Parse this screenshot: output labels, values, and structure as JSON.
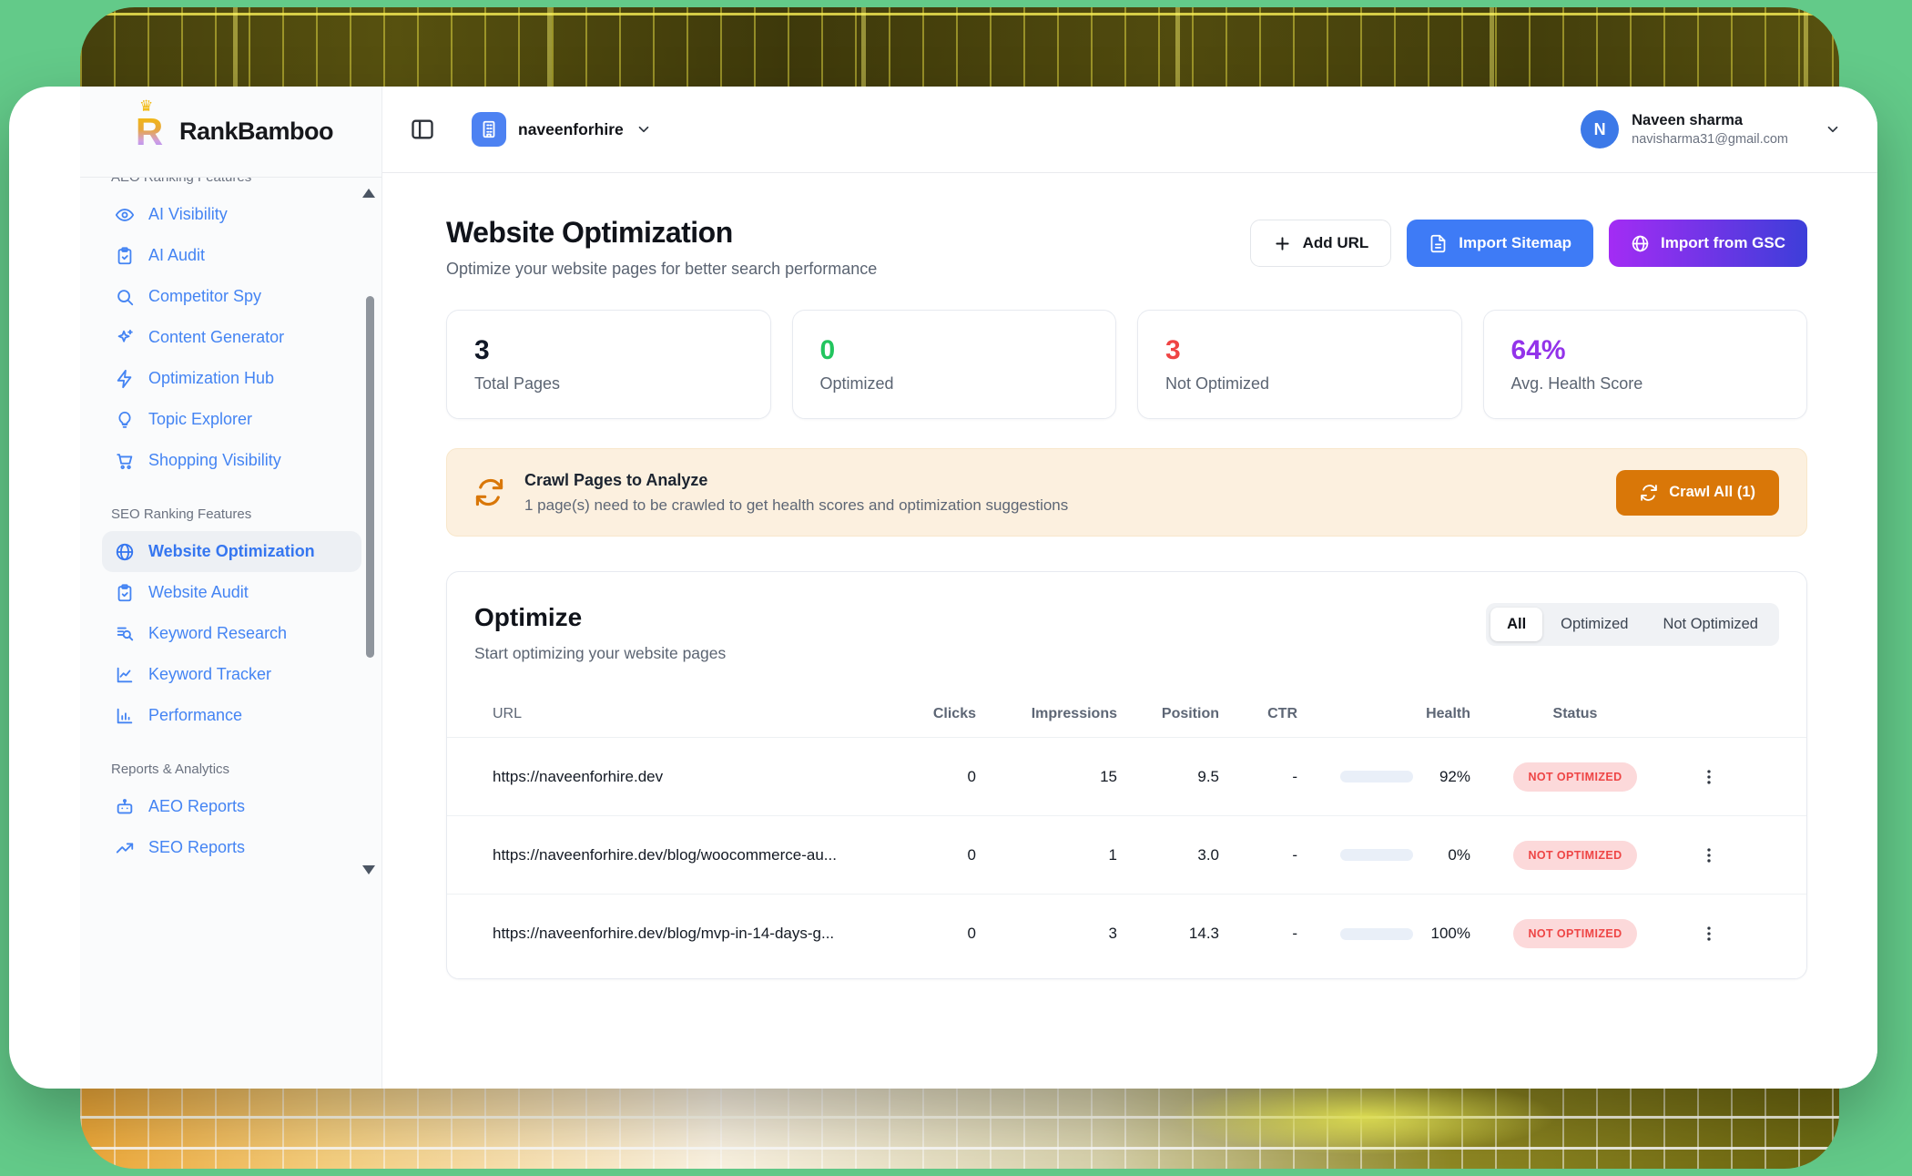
{
  "brand": {
    "name": "RankBamboo"
  },
  "workspace": {
    "name": "naveenforhire"
  },
  "user": {
    "initial": "N",
    "name": "Naveen sharma",
    "email": "navisharma31@gmail.com"
  },
  "sidebar": {
    "sections": [
      {
        "label": "AEO Ranking Features",
        "clipped": true,
        "items": [
          {
            "label": "AI Visibility",
            "icon": "eye"
          },
          {
            "label": "AI Audit",
            "icon": "clipboard-check"
          },
          {
            "label": "Competitor Spy",
            "icon": "search"
          },
          {
            "label": "Content Generator",
            "icon": "sparkles"
          },
          {
            "label": "Optimization Hub",
            "icon": "zap"
          },
          {
            "label": "Topic Explorer",
            "icon": "lightbulb"
          },
          {
            "label": "Shopping Visibility",
            "icon": "shopping-cart"
          }
        ]
      },
      {
        "label": "SEO Ranking Features",
        "items": [
          {
            "label": "Website Optimization",
            "icon": "globe",
            "active": true
          },
          {
            "label": "Website Audit",
            "icon": "clipboard-check"
          },
          {
            "label": "Keyword Research",
            "icon": "list-search"
          },
          {
            "label": "Keyword Tracker",
            "icon": "chart-line"
          },
          {
            "label": "Performance",
            "icon": "bar-chart"
          }
        ]
      },
      {
        "label": "Reports & Analytics",
        "items": [
          {
            "label": "AEO Reports",
            "icon": "robot"
          },
          {
            "label": "SEO Reports",
            "icon": "trending-up"
          }
        ]
      }
    ]
  },
  "page": {
    "title": "Website Optimization",
    "subtitle": "Optimize your website pages for better search performance",
    "actions": {
      "add_url": "Add URL",
      "import_sitemap": "Import Sitemap",
      "import_gsc": "Import from GSC"
    }
  },
  "stats": [
    {
      "value": "3",
      "label": "Total Pages",
      "color": "#111827"
    },
    {
      "value": "0",
      "label": "Optimized",
      "color": "#22c55e"
    },
    {
      "value": "3",
      "label": "Not Optimized",
      "color": "#ef4444"
    },
    {
      "value": "64%",
      "label": "Avg. Health Score",
      "color": "#9333ea"
    }
  ],
  "crawl_banner": {
    "title": "Crawl Pages to Analyze",
    "description": "1 page(s) need to be crawled to get health scores and optimization suggestions",
    "button": "Crawl All (1)"
  },
  "optimize": {
    "title": "Optimize",
    "subtitle": "Start optimizing your website pages",
    "tabs": [
      {
        "label": "All",
        "active": true
      },
      {
        "label": "Optimized",
        "active": false
      },
      {
        "label": "Not Optimized",
        "active": false
      }
    ],
    "columns": [
      "URL",
      "Clicks",
      "Impressions",
      "Position",
      "CTR",
      "Health",
      "Status"
    ],
    "rows": [
      {
        "url": "https://naveenforhire.dev",
        "clicks": "0",
        "impressions": "15",
        "position": "9.5",
        "ctr": "-",
        "health_pct": 92,
        "health": "92%",
        "status": "NOT OPTIMIZED"
      },
      {
        "url": "https://naveenforhire.dev/blog/woocommerce-au...",
        "clicks": "0",
        "impressions": "1",
        "position": "3.0",
        "ctr": "-",
        "health_pct": 0,
        "health": "0%",
        "status": "NOT OPTIMIZED"
      },
      {
        "url": "https://naveenforhire.dev/blog/mvp-in-14-days-g...",
        "clicks": "0",
        "impressions": "3",
        "position": "14.3",
        "ctr": "-",
        "health_pct": 100,
        "health": "100%",
        "status": "NOT OPTIMIZED"
      }
    ]
  },
  "colors": {
    "accent_blue": "#3e7bf6",
    "accent_purple": "#9333ea",
    "accent_orange": "#d97708",
    "badge_bg": "#fcd9da",
    "badge_text": "#ee4545",
    "sidebar_link": "#4484f3",
    "background_green": "#63ca89"
  }
}
